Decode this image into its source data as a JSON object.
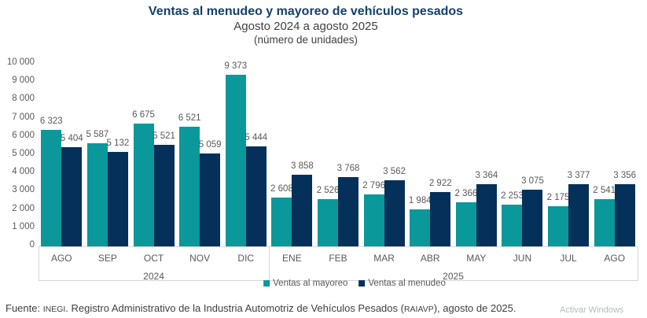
{
  "header": {
    "title": "Ventas al menudeo y mayoreo de vehículos pesados",
    "subtitle": "Agosto 2024 a agosto 2025",
    "unit_note": "(número de unidades)"
  },
  "chart_data": {
    "type": "bar",
    "categories": [
      "AGO",
      "SEP",
      "OCT",
      "NOV",
      "DIC",
      "ENE",
      "FEB",
      "MAR",
      "ABR",
      "MAY",
      "JUN",
      "JUL",
      "AGO"
    ],
    "year_groups": [
      {
        "label": "2024",
        "span": 5
      },
      {
        "label": "2025",
        "span": 8
      }
    ],
    "series": [
      {
        "name": "Ventas al mayoreo",
        "color": "#0a989b",
        "values": [
          6323,
          5587,
          6675,
          6521,
          9373,
          2608,
          2526,
          2796,
          1984,
          2366,
          2253,
          2175,
          2541
        ]
      },
      {
        "name": "Ventas al menudeo",
        "color": "#04305a",
        "values": [
          5404,
          5132,
          5521,
          5059,
          5444,
          3858,
          3768,
          3562,
          2922,
          3364,
          3075,
          3377,
          3356
        ]
      }
    ],
    "title": "Ventas al menudeo y mayoreo de vehículos pesados",
    "xlabel": "",
    "ylabel": "",
    "ylim": [
      0,
      10000
    ],
    "ytick_step": 1000,
    "grid": false,
    "legend_position": "bottom",
    "data_labels": true
  },
  "footer": {
    "prefix": "Fuente: ",
    "inegi": "INEGI",
    "middle": ". Registro Administrativo de la Industria Automotriz de Vehículos Pesados (",
    "acronym": "RAIAVP",
    "suffix": "), agosto de 2025."
  },
  "watermark": "Activar Windows",
  "colors": {
    "title": "#12406e",
    "text_gray": "#595959",
    "axis_line": "#d6d6d6",
    "mayoreo": "#0a989b",
    "menudeo": "#04305a"
  }
}
